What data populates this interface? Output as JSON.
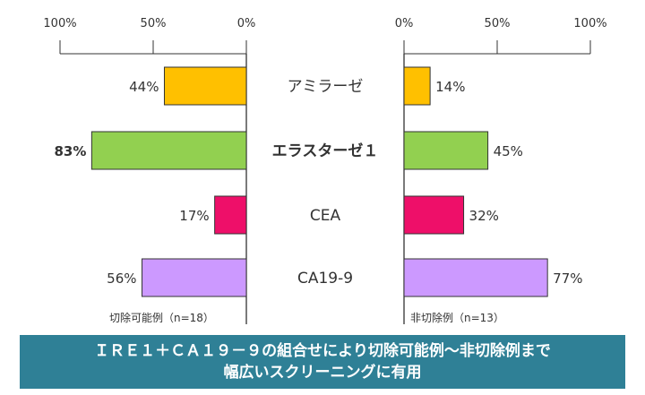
{
  "chart_data": {
    "type": "bar",
    "categories": [
      "アミラーゼ",
      "エラスターゼ１",
      "CEA",
      "CA19-9"
    ],
    "highlight_category": "エラスターゼ１",
    "colors": [
      "#ffc000",
      "#92d050",
      "#ee0f69",
      "#cc99ff"
    ],
    "highlight_color": "#e01f1f",
    "left_axis": {
      "ticks": [
        "100%",
        "50%",
        "0%"
      ],
      "range": [
        100,
        0
      ],
      "group_label": "切除可能例（n=18）"
    },
    "right_axis": {
      "ticks": [
        "0%",
        "50%",
        "100%"
      ],
      "range": [
        0,
        100
      ],
      "group_label": "非切除例（n=13）"
    },
    "series": [
      {
        "name": "切除可能例（n=18）",
        "side": "left",
        "values": [
          44,
          83,
          17,
          56
        ],
        "labels": [
          "44%",
          "83%",
          "17%",
          "56%"
        ]
      },
      {
        "name": "非切除例（n=13）",
        "side": "right",
        "values": [
          14,
          45,
          32,
          77
        ],
        "labels": [
          "14%",
          "45%",
          "32%",
          "77%"
        ]
      }
    ]
  },
  "banner": {
    "line1": "ＩＲＥ１＋ＣＡ１９－９の組合せにより切除可能例～非切除例まで",
    "line2": "幅広いスクリーニングに有用",
    "background": "#2f8096"
  }
}
